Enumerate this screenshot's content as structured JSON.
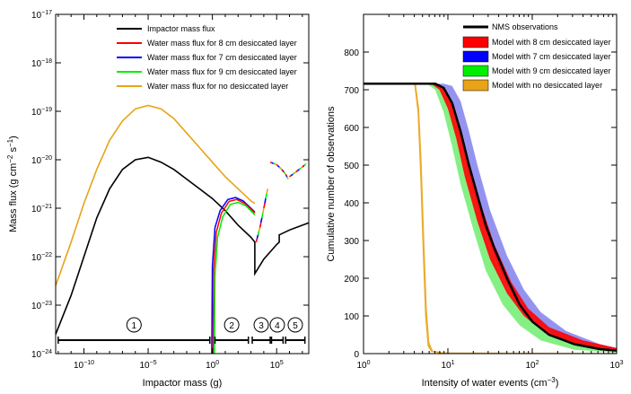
{
  "chart_data": [
    {
      "type": "line",
      "panel": "left",
      "xlabel": "Impactor mass (g)",
      "ylabel_main": "Mass flux (g cm",
      "ylabel_exp1": "−2",
      "ylabel_mid": " s",
      "ylabel_exp2": "−1",
      "ylabel_end": ")",
      "xscale": "log",
      "yscale": "log",
      "xlim_log10": [
        -12.2,
        7.5
      ],
      "ylim_log10": [
        -24,
        -17
      ],
      "x_ticks": [
        {
          "log": -10,
          "base": "10",
          "exp": "−10"
        },
        {
          "log": -5,
          "base": "10",
          "exp": "−5"
        },
        {
          "log": 0,
          "base": "10",
          "exp": "0"
        },
        {
          "log": 5,
          "base": "10",
          "exp": "5"
        }
      ],
      "y_ticks": [
        {
          "log": -17,
          "base": "10",
          "exp": "−17"
        },
        {
          "log": -18,
          "base": "10",
          "exp": "−18"
        },
        {
          "log": -19,
          "base": "10",
          "exp": "−19"
        },
        {
          "log": -20,
          "base": "10",
          "exp": "−20"
        },
        {
          "log": -21,
          "base": "10",
          "exp": "−21"
        },
        {
          "log": -22,
          "base": "10",
          "exp": "−22"
        },
        {
          "log": -23,
          "base": "10",
          "exp": "−23"
        },
        {
          "log": -24,
          "base": "10",
          "exp": "−24"
        }
      ],
      "legend": [
        {
          "label": "Impactor mass flux",
          "color": "#000000"
        },
        {
          "label": "Water mass flux for 8 cm desiccated layer",
          "color": "#ff0000"
        },
        {
          "label": "Water mass flux for 7 cm desiccated layer",
          "color": "#0000ff"
        },
        {
          "label": "Water mass flux for 9 cm desiccated layer",
          "color": "#00ee00"
        },
        {
          "label": "Water mass flux for no desiccated layer",
          "color": "#e8a317"
        }
      ],
      "series": [
        {
          "name": "Impactor mass flux",
          "color": "#000000",
          "points": [
            [
              -12.2,
              -23.6
            ],
            [
              -11,
              -22.8
            ],
            [
              -10,
              -22.0
            ],
            [
              -9,
              -21.2
            ],
            [
              -8,
              -20.6
            ],
            [
              -7,
              -20.2
            ],
            [
              -6,
              -20.0
            ],
            [
              -5,
              -19.95
            ],
            [
              -4,
              -20.05
            ],
            [
              -3,
              -20.2
            ],
            [
              -2,
              -20.4
            ],
            [
              -1,
              -20.6
            ],
            [
              0,
              -20.8
            ],
            [
              1,
              -21.05
            ],
            [
              2,
              -21.35
            ],
            [
              3,
              -21.6
            ],
            [
              3.3,
              -21.7
            ],
            [
              3.3,
              -22.35
            ],
            [
              4,
              -22.05
            ],
            [
              5,
              -21.75
            ],
            [
              5.2,
              -21.7
            ],
            [
              5.2,
              -21.55
            ],
            [
              6,
              -21.45
            ],
            [
              7.5,
              -21.3
            ]
          ]
        },
        {
          "name": "Water mass flux for no desiccated layer",
          "color": "#e8a317",
          "points": [
            [
              -12.2,
              -22.6
            ],
            [
              -11,
              -21.7
            ],
            [
              -10,
              -20.9
            ],
            [
              -9,
              -20.2
            ],
            [
              -8,
              -19.6
            ],
            [
              -7,
              -19.2
            ],
            [
              -6,
              -18.95
            ],
            [
              -5,
              -18.88
            ],
            [
              -4,
              -18.95
            ],
            [
              -3,
              -19.15
            ],
            [
              -2,
              -19.45
            ],
            [
              -1,
              -19.75
            ],
            [
              0,
              -20.05
            ],
            [
              1,
              -20.35
            ],
            [
              2,
              -20.6
            ],
            [
              3,
              -20.85
            ],
            [
              3.3,
              -20.9
            ]
          ]
        }
      ],
      "desiccated_curves": [
        {
          "name": "7 cm",
          "color": "#0000ff",
          "points": [
            [
              -0.05,
              -24
            ],
            [
              0,
              -22.2
            ],
            [
              0.2,
              -21.4
            ],
            [
              0.6,
              -21.05
            ],
            [
              1.2,
              -20.82
            ],
            [
              1.8,
              -20.78
            ],
            [
              2.4,
              -20.85
            ],
            [
              3.0,
              -21.0
            ],
            [
              3.3,
              -21.08
            ]
          ]
        },
        {
          "name": "8 cm",
          "color": "#ff0000",
          "points": [
            [
              0.05,
              -24
            ],
            [
              0.1,
              -22.3
            ],
            [
              0.3,
              -21.5
            ],
            [
              0.7,
              -21.1
            ],
            [
              1.3,
              -20.86
            ],
            [
              1.9,
              -20.82
            ],
            [
              2.5,
              -20.9
            ],
            [
              3.0,
              -21.02
            ],
            [
              3.3,
              -21.1
            ]
          ]
        },
        {
          "name": "9 cm",
          "color": "#00ee00",
          "points": [
            [
              0.15,
              -24
            ],
            [
              0.2,
              -22.4
            ],
            [
              0.4,
              -21.6
            ],
            [
              0.8,
              -21.18
            ],
            [
              1.4,
              -20.92
            ],
            [
              2.0,
              -20.88
            ],
            [
              2.6,
              -20.95
            ],
            [
              3.1,
              -21.08
            ],
            [
              3.3,
              -21.14
            ]
          ]
        }
      ],
      "dashed_segments": [
        [
          [
            3.4,
            -21.7
          ],
          [
            3.7,
            -21.4
          ],
          [
            4.0,
            -21.0
          ],
          [
            4.3,
            -20.6
          ]
        ],
        [
          [
            4.5,
            -20.05
          ],
          [
            5.0,
            -20.1
          ],
          [
            5.4,
            -20.2
          ],
          [
            5.7,
            -20.3
          ],
          [
            5.9,
            -20.4
          ]
        ],
        [
          [
            6.0,
            -20.35
          ],
          [
            6.5,
            -20.25
          ],
          [
            7.0,
            -20.15
          ],
          [
            7.3,
            -20.08
          ]
        ]
      ],
      "ranges": [
        {
          "label": "1",
          "from": -12,
          "to": -0.2
        },
        {
          "label": "2",
          "from": 0.2,
          "to": 2.8
        },
        {
          "label": "3",
          "from": 3.1,
          "to": 4.5
        },
        {
          "label": "4",
          "from": 4.6,
          "to": 5.5
        },
        {
          "label": "5",
          "from": 5.7,
          "to": 7.2
        }
      ]
    },
    {
      "type": "area",
      "panel": "right",
      "xlabel_main": "Intensity of water events (cm",
      "xlabel_exp": "−3",
      "xlabel_end": ")",
      "ylabel": "Cumulative number of observations",
      "xscale": "log",
      "xlim": [
        1,
        1000
      ],
      "ylim": [
        0,
        900
      ],
      "x_ticks": [
        {
          "log": 0,
          "base": "10",
          "exp": "0"
        },
        {
          "log": 1,
          "base": "10",
          "exp": "1"
        },
        {
          "log": 2,
          "base": "10",
          "exp": "2"
        },
        {
          "log": 3,
          "base": "10",
          "exp": "3"
        }
      ],
      "y_ticks": [
        "0",
        "100",
        "200",
        "300",
        "400",
        "500",
        "600",
        "700",
        "800"
      ],
      "legend": [
        {
          "label": "NMS observations",
          "color": "#000000",
          "kind": "line"
        },
        {
          "label": "Model with 8 cm desiccated layer",
          "color": "#ff0000",
          "kind": "box"
        },
        {
          "label": "Model with 7 cm desiccated layer",
          "color": "#0000ff",
          "kind": "box"
        },
        {
          "label": "Model with 9 cm desiccated layer",
          "color": "#00ee00",
          "kind": "box"
        },
        {
          "label": "Model with no desiccated layer",
          "color": "#e8a317",
          "kind": "box"
        }
      ],
      "bands": [
        {
          "name": "9 cm",
          "color": "#77ee77",
          "upper": [
            [
              0,
              716
            ],
            [
              0.75,
              716
            ],
            [
              0.9,
              710
            ],
            [
              1.0,
              670
            ],
            [
              1.1,
              600
            ],
            [
              1.2,
              500
            ],
            [
              1.35,
              380
            ],
            [
              1.5,
              270
            ],
            [
              1.7,
              170
            ],
            [
              1.9,
              100
            ],
            [
              2.2,
              55
            ],
            [
              2.6,
              25
            ],
            [
              3,
              10
            ]
          ],
          "lower": [
            [
              0,
              716
            ],
            [
              0.75,
              716
            ],
            [
              0.85,
              700
            ],
            [
              0.95,
              640
            ],
            [
              1.05,
              550
            ],
            [
              1.15,
              450
            ],
            [
              1.3,
              330
            ],
            [
              1.45,
              220
            ],
            [
              1.65,
              130
            ],
            [
              1.85,
              75
            ],
            [
              2.1,
              35
            ],
            [
              2.5,
              10
            ],
            [
              3,
              3
            ]
          ]
        },
        {
          "name": "7 cm",
          "color": "#8888ee",
          "upper": [
            [
              0,
              716
            ],
            [
              0.95,
              716
            ],
            [
              1.05,
              710
            ],
            [
              1.15,
              670
            ],
            [
              1.25,
              590
            ],
            [
              1.35,
              500
            ],
            [
              1.5,
              380
            ],
            [
              1.7,
              260
            ],
            [
              1.9,
              170
            ],
            [
              2.1,
              110
            ],
            [
              2.4,
              60
            ],
            [
              2.8,
              25
            ],
            [
              3,
              15
            ]
          ],
          "lower": [
            [
              0,
              716
            ],
            [
              0.85,
              716
            ],
            [
              0.95,
              700
            ],
            [
              1.05,
              650
            ],
            [
              1.15,
              570
            ],
            [
              1.25,
              470
            ],
            [
              1.4,
              350
            ],
            [
              1.6,
              230
            ],
            [
              1.8,
              140
            ],
            [
              2.0,
              90
            ],
            [
              2.3,
              45
            ],
            [
              2.7,
              18
            ],
            [
              3,
              8
            ]
          ]
        },
        {
          "name": "8 cm",
          "color": "#ff0000",
          "upper": [
            [
              0,
              716
            ],
            [
              0.85,
              716
            ],
            [
              0.95,
              708
            ],
            [
              1.05,
              670
            ],
            [
              1.15,
              600
            ],
            [
              1.25,
              510
            ],
            [
              1.4,
              390
            ],
            [
              1.55,
              290
            ],
            [
              1.75,
              190
            ],
            [
              1.95,
              120
            ],
            [
              2.2,
              70
            ],
            [
              2.6,
              35
            ],
            [
              3,
              15
            ]
          ],
          "lower": [
            [
              0,
              716
            ],
            [
              0.8,
              716
            ],
            [
              0.9,
              700
            ],
            [
              1.0,
              650
            ],
            [
              1.1,
              570
            ],
            [
              1.2,
              470
            ],
            [
              1.35,
              350
            ],
            [
              1.5,
              250
            ],
            [
              1.7,
              160
            ],
            [
              1.9,
              100
            ],
            [
              2.15,
              55
            ],
            [
              2.5,
              25
            ],
            [
              3,
              5
            ]
          ]
        },
        {
          "name": "no desiccated layer",
          "color": "#e8a317",
          "upper": [
            [
              0,
              716
            ],
            [
              0.62,
              716
            ],
            [
              0.66,
              650
            ],
            [
              0.69,
              500
            ],
            [
              0.72,
              300
            ],
            [
              0.75,
              120
            ],
            [
              0.78,
              30
            ],
            [
              0.82,
              8
            ],
            [
              0.95,
              3
            ],
            [
              3,
              2
            ]
          ],
          "lower": [
            [
              0,
              716
            ],
            [
              0.6,
              716
            ],
            [
              0.64,
              640
            ],
            [
              0.67,
              480
            ],
            [
              0.7,
              280
            ],
            [
              0.73,
              100
            ],
            [
              0.76,
              20
            ],
            [
              0.8,
              5
            ],
            [
              0.9,
              1
            ],
            [
              3,
              0
            ]
          ]
        }
      ],
      "observations": [
        [
          0,
          716
        ],
        [
          0.85,
          716
        ],
        [
          0.95,
          705
        ],
        [
          1.05,
          665
        ],
        [
          1.15,
          590
        ],
        [
          1.25,
          500
        ],
        [
          1.35,
          420
        ],
        [
          1.45,
          340
        ],
        [
          1.55,
          280
        ],
        [
          1.7,
          200
        ],
        [
          1.85,
          130
        ],
        [
          2.0,
          85
        ],
        [
          2.2,
          50
        ],
        [
          2.5,
          25
        ],
        [
          2.8,
          12
        ],
        [
          3,
          8
        ]
      ]
    }
  ]
}
